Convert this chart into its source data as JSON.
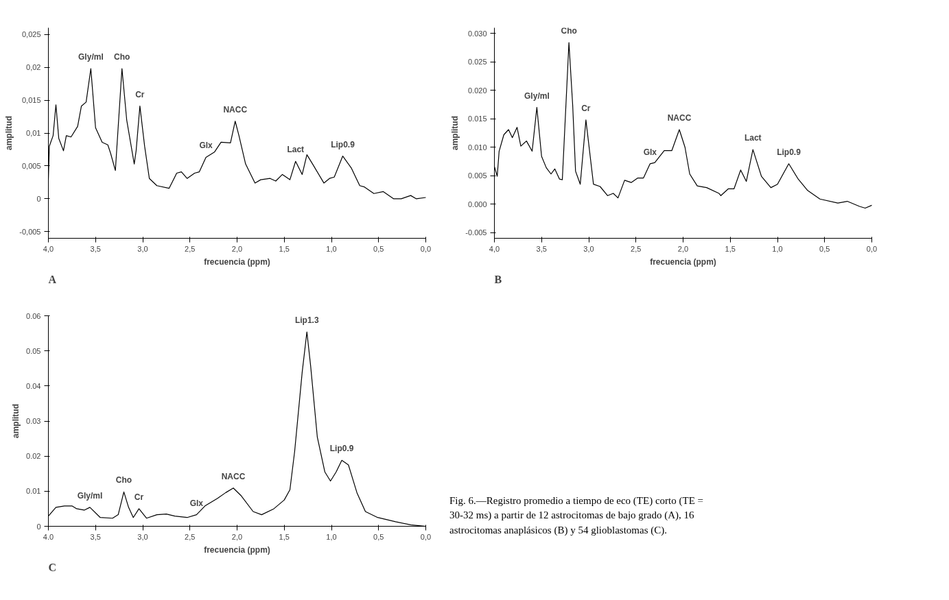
{
  "chart_data": [
    {
      "type": "line",
      "title": "A",
      "xlabel": "frecuencia (ppm)",
      "ylabel": "amplitud",
      "grid": false,
      "color": "#000000",
      "x": [
        4.0,
        3.99,
        3.95,
        3.92,
        3.89,
        3.84,
        3.81,
        3.76,
        3.69,
        3.65,
        3.6,
        3.55,
        3.5,
        3.43,
        3.37,
        3.34,
        3.29,
        3.22,
        3.17,
        3.09,
        3.07,
        3.03,
        2.98,
        2.93,
        2.85,
        2.72,
        2.64,
        2.59,
        2.53,
        2.45,
        2.4,
        2.33,
        2.24,
        2.17,
        2.07,
        2.02,
        1.98,
        1.91,
        1.81,
        1.75,
        1.65,
        1.59,
        1.52,
        1.44,
        1.38,
        1.31,
        1.26,
        1.2,
        1.08,
        1.02,
        0.97,
        0.88,
        0.79,
        0.7,
        0.65,
        0.55,
        0.45,
        0.34,
        0.26,
        0.16,
        0.1,
        0.0
      ],
      "values": [
        0.0029,
        0.008,
        0.0096,
        0.0143,
        0.0092,
        0.0073,
        0.0096,
        0.0094,
        0.011,
        0.0141,
        0.0147,
        0.0198,
        0.0108,
        0.0086,
        0.0082,
        0.0069,
        0.0043,
        0.0198,
        0.012,
        0.0053,
        0.0073,
        0.0141,
        0.008,
        0.0031,
        0.002,
        0.0016,
        0.0039,
        0.0041,
        0.0031,
        0.0039,
        0.0041,
        0.0063,
        0.0071,
        0.0086,
        0.0085,
        0.0118,
        0.0096,
        0.0053,
        0.0024,
        0.0029,
        0.0031,
        0.0027,
        0.0037,
        0.0029,
        0.0057,
        0.0037,
        0.0067,
        0.0053,
        0.0024,
        0.0031,
        0.0033,
        0.0065,
        0.0047,
        0.002,
        0.0018,
        0.0008,
        0.0011,
        0.0,
        0.0,
        0.0005,
        0.0,
        0.0002
      ],
      "xlim": [
        4.0,
        0.0
      ],
      "ylim": [
        -0.006,
        0.026
      ],
      "xticks": [
        {
          "value": 4.0,
          "label": "4,0"
        },
        {
          "value": 3.5,
          "label": "3,5"
        },
        {
          "value": 3.0,
          "label": "3,0"
        },
        {
          "value": 2.5,
          "label": "2,5"
        },
        {
          "value": 2.0,
          "label": "2,0"
        },
        {
          "value": 1.5,
          "label": "1,5"
        },
        {
          "value": 1.0,
          "label": "1,0"
        },
        {
          "value": 0.5,
          "label": "0,5"
        },
        {
          "value": 0.0,
          "label": "0,0"
        }
      ],
      "yticks": [
        {
          "value": -0.005,
          "label": "-0,005"
        },
        0,
        {
          "value": 0.005,
          "label": "0,005"
        },
        {
          "value": 0.01,
          "label": "0,01"
        },
        {
          "value": 0.015,
          "label": "0,015"
        },
        {
          "value": 0.02,
          "label": "0,02"
        },
        {
          "value": 0.025,
          "label": "0,025"
        }
      ],
      "annotations": [
        {
          "text": "Gly/mI",
          "x": 3.55,
          "y": 0.0198
        },
        {
          "text": "Cho",
          "x": 3.22,
          "y": 0.0198
        },
        {
          "text": "Cr",
          "x": 3.03,
          "y": 0.0141
        },
        {
          "text": "Glx",
          "x": 2.33,
          "y": 0.0063
        },
        {
          "text": "NACC",
          "x": 2.02,
          "y": 0.0118
        },
        {
          "text": "Lact",
          "x": 1.38,
          "y": 0.0057
        },
        {
          "text": "Lip0.9",
          "x": 0.88,
          "y": 0.0065
        }
      ]
    },
    {
      "type": "line",
      "title": "B",
      "xlabel": "frecuencia (ppm)",
      "ylabel": "amplitud",
      "grid": false,
      "color": "#000000",
      "x": [
        4.0,
        3.97,
        3.95,
        3.9,
        3.85,
        3.81,
        3.76,
        3.72,
        3.66,
        3.6,
        3.55,
        3.5,
        3.45,
        3.4,
        3.36,
        3.31,
        3.28,
        3.21,
        3.17,
        3.14,
        3.09,
        3.03,
        2.95,
        2.88,
        2.8,
        2.74,
        2.69,
        2.62,
        2.55,
        2.48,
        2.42,
        2.35,
        2.3,
        2.2,
        2.12,
        2.04,
        1.98,
        1.93,
        1.85,
        1.75,
        1.62,
        1.6,
        1.52,
        1.46,
        1.39,
        1.33,
        1.26,
        1.17,
        1.07,
        1.0,
        0.88,
        0.78,
        0.68,
        0.55,
        0.36,
        0.26,
        0.13,
        0.07,
        0.0
      ],
      "values": [
        0.0066,
        0.0049,
        0.0093,
        0.0122,
        0.0131,
        0.0117,
        0.0135,
        0.0102,
        0.0111,
        0.0093,
        0.017,
        0.0084,
        0.0064,
        0.0053,
        0.0062,
        0.0044,
        0.0043,
        0.0284,
        0.0173,
        0.0058,
        0.0035,
        0.0148,
        0.0035,
        0.0031,
        0.0015,
        0.0019,
        0.0011,
        0.0042,
        0.0038,
        0.0046,
        0.0046,
        0.0071,
        0.0073,
        0.0094,
        0.0094,
        0.0131,
        0.01,
        0.0053,
        0.0032,
        0.0029,
        0.0019,
        0.0015,
        0.0027,
        0.0027,
        0.006,
        0.004,
        0.0096,
        0.0049,
        0.0029,
        0.0035,
        0.0071,
        0.0044,
        0.0024,
        0.0009,
        0.0002,
        0.0005,
        -0.0004,
        -0.0007,
        -0.0002
      ],
      "xlim": [
        4.0,
        0.0
      ],
      "ylim": [
        -0.006,
        0.031
      ],
      "xticks": [
        {
          "value": 4.0,
          "label": "4,0"
        },
        {
          "value": 3.5,
          "label": "3,5"
        },
        {
          "value": 3.0,
          "label": "3,0"
        },
        {
          "value": 2.5,
          "label": "2,5"
        },
        {
          "value": 2.0,
          "label": "2,0"
        },
        {
          "value": 1.5,
          "label": "1,5"
        },
        {
          "value": 1.0,
          "label": "1,0"
        },
        {
          "value": 0.5,
          "label": "0,5"
        },
        {
          "value": 0.0,
          "label": "0,0"
        }
      ],
      "yticks": [
        {
          "value": -0.005,
          "label": "-0.005"
        },
        {
          "value": 0,
          "label": "0.000"
        },
        {
          "value": 0.005,
          "label": "0.005"
        },
        {
          "value": 0.01,
          "label": "0.010"
        },
        {
          "value": 0.015,
          "label": "0.015"
        },
        {
          "value": 0.02,
          "label": "0.020"
        },
        {
          "value": 0.025,
          "label": "0.025"
        },
        {
          "value": 0.03,
          "label": "0.030"
        }
      ],
      "annotations": [
        {
          "text": "Cho",
          "x": 3.21,
          "y": 0.0284
        },
        {
          "text": "Gly/mI",
          "x": 3.55,
          "y": 0.017
        },
        {
          "text": "Cr",
          "x": 3.03,
          "y": 0.0148
        },
        {
          "text": "Glx",
          "x": 2.35,
          "y": 0.0071
        },
        {
          "text": "NACC",
          "x": 2.04,
          "y": 0.0131
        },
        {
          "text": "Lact",
          "x": 1.26,
          "y": 0.0096
        },
        {
          "text": "Lip0.9",
          "x": 0.88,
          "y": 0.0071
        }
      ]
    },
    {
      "type": "line",
      "title": "C",
      "xlabel": "frecuencia (ppm)",
      "ylabel": "amplitud",
      "grid": false,
      "color": "#000000",
      "x": [
        4.0,
        3.92,
        3.83,
        3.75,
        3.7,
        3.62,
        3.56,
        3.45,
        3.32,
        3.26,
        3.2,
        3.15,
        3.1,
        3.04,
        2.96,
        2.85,
        2.75,
        2.66,
        2.53,
        2.43,
        2.34,
        2.21,
        2.12,
        2.04,
        1.96,
        1.83,
        1.74,
        1.61,
        1.5,
        1.44,
        1.39,
        1.31,
        1.26,
        1.22,
        1.15,
        1.07,
        1.01,
        0.95,
        0.89,
        0.82,
        0.73,
        0.64,
        0.51,
        0.32,
        0.16,
        0.0
      ],
      "values": [
        0.0029,
        0.0054,
        0.0058,
        0.0058,
        0.005,
        0.0046,
        0.0054,
        0.0025,
        0.0023,
        0.0033,
        0.0098,
        0.0054,
        0.0025,
        0.005,
        0.0023,
        0.0033,
        0.0035,
        0.0029,
        0.0025,
        0.0033,
        0.0058,
        0.0079,
        0.0096,
        0.0109,
        0.0088,
        0.0042,
        0.0033,
        0.005,
        0.0075,
        0.0104,
        0.0213,
        0.0439,
        0.0554,
        0.0456,
        0.0255,
        0.0155,
        0.0129,
        0.0155,
        0.0188,
        0.0175,
        0.0096,
        0.0042,
        0.0025,
        0.0013,
        0.0004,
        0.0
      ],
      "xlim": [
        4.0,
        0.0
      ],
      "ylim": [
        0,
        0.06
      ],
      "xticks": [
        {
          "value": 4.0,
          "label": "4.0"
        },
        {
          "value": 3.5,
          "label": "3,5"
        },
        {
          "value": 3.0,
          "label": "3,0"
        },
        {
          "value": 2.5,
          "label": "2,5"
        },
        {
          "value": 2.0,
          "label": "2,0"
        },
        {
          "value": 1.5,
          "label": "1,5"
        },
        {
          "value": 1.0,
          "label": "1,0"
        },
        {
          "value": 0.5,
          "label": "0,5"
        },
        {
          "value": 0.0,
          "label": "0,0"
        }
      ],
      "yticks": [
        0,
        0.01,
        0.02,
        0.03,
        0.04,
        0.05,
        0.06
      ],
      "annotations": [
        {
          "text": "Lip1.3",
          "x": 1.26,
          "y": 0.0554
        },
        {
          "text": "Lip0.9",
          "x": 0.89,
          "y": 0.0188
        },
        {
          "text": "Cho",
          "x": 3.2,
          "y": 0.0098
        },
        {
          "text": "Gly/mI",
          "x": 3.56,
          "y": 0.0054
        },
        {
          "text": "Cr",
          "x": 3.04,
          "y": 0.005
        },
        {
          "text": "Glx",
          "x": 2.43,
          "y": 0.0033
        },
        {
          "text": "NACC",
          "x": 2.04,
          "y": 0.0109
        },
        "Fig. 6.—Registro promedio a tiempo de eco (TE) corto (TE = 30-32 ms) a partir de 12 astrocitomas de bajo grado (A), 16 astrocitomas anaplásicos (B) y 54 glioblastomas (C)."
      ]
    }
  ]
}
